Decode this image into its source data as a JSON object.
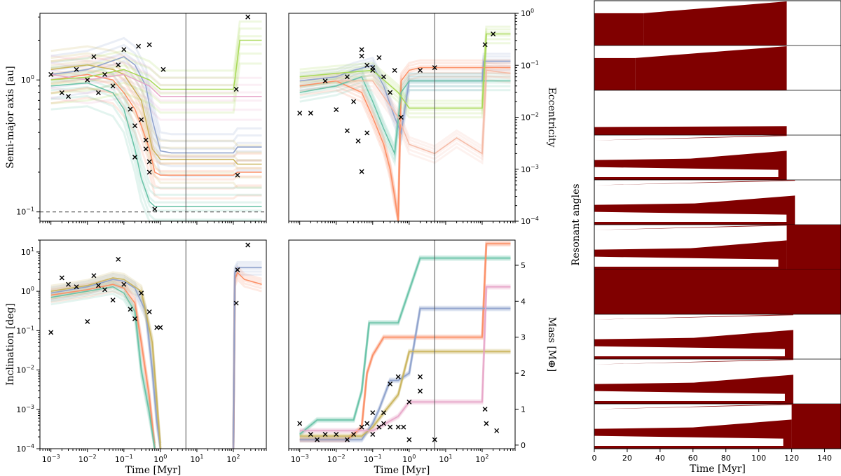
{
  "chart_data": [
    {
      "id": "semimajor",
      "type": "line",
      "xscale": "log",
      "yscale": "log",
      "xlim": [
        0.0005,
        800
      ],
      "ylim": [
        0.085,
        3.2
      ],
      "xlabel": "",
      "ylabel": "Semi-major axis [au]",
      "ytick_labels": [
        "10^0",
        "10^-1"
      ],
      "ytick_values": [
        1,
        0.1
      ],
      "vline_x": 5,
      "hline_y": 0.1,
      "series": [
        {
          "name": "blue",
          "color": "#8da0cb",
          "x": [
            0.001,
            0.01,
            0.05,
            0.1,
            0.2,
            0.4,
            0.6,
            1,
            2,
            5,
            100,
            130,
            600
          ],
          "y": [
            1.1,
            1.2,
            1.4,
            1.5,
            1.3,
            0.9,
            0.5,
            0.29,
            0.28,
            0.28,
            0.28,
            0.31,
            0.31
          ]
        },
        {
          "name": "orange",
          "color": "#fc8d62",
          "x": [
            0.001,
            0.01,
            0.05,
            0.1,
            0.2,
            0.3,
            0.5,
            0.7,
            1,
            5,
            100,
            130,
            600
          ],
          "y": [
            1.0,
            1.1,
            1.0,
            0.8,
            0.6,
            0.45,
            0.3,
            0.2,
            0.19,
            0.19,
            0.19,
            0.2,
            0.2
          ]
        },
        {
          "name": "green",
          "color": "#66c2a5",
          "x": [
            0.001,
            0.01,
            0.05,
            0.1,
            0.2,
            0.3,
            0.5,
            0.7,
            1,
            5,
            100,
            130,
            600
          ],
          "y": [
            0.9,
            0.95,
            0.8,
            0.6,
            0.3,
            0.18,
            0.12,
            0.11,
            0.11,
            0.11,
            0.11,
            0.11,
            0.11
          ]
        },
        {
          "name": "olive",
          "color": "#c9b35a",
          "x": [
            0.001,
            0.01,
            0.05,
            0.1,
            0.3,
            0.6,
            1,
            5,
            100,
            130,
            600
          ],
          "y": [
            1.2,
            1.3,
            1.2,
            1.1,
            0.7,
            0.3,
            0.25,
            0.25,
            0.25,
            0.23,
            0.23
          ]
        },
        {
          "name": "pink",
          "color": "#e7a5c9",
          "x": [
            0.001,
            0.01,
            0.1,
            0.5,
            1,
            5,
            100,
            130,
            600
          ],
          "y": [
            1.1,
            1.0,
            1.1,
            0.9,
            0.75,
            0.75,
            0.75,
            0.75,
            0.75
          ]
        },
        {
          "name": "lightgreen",
          "color": "#a6d854",
          "x": [
            0.001,
            0.01,
            0.1,
            0.5,
            1,
            5,
            100,
            110,
            150,
            600
          ],
          "y": [
            1.0,
            1.05,
            1.2,
            1.0,
            0.85,
            0.85,
            0.85,
            1.0,
            2.0,
            2.0
          ]
        }
      ],
      "markers": {
        "x": [
          0.001,
          0.002,
          0.003,
          0.005,
          0.01,
          0.015,
          0.02,
          0.03,
          0.05,
          0.07,
          0.1,
          0.15,
          0.2,
          0.25,
          0.3,
          0.4,
          0.5,
          0.7,
          1.2,
          0.5,
          0.5,
          0.2,
          0.4,
          120,
          130,
          250
        ],
        "y": [
          1.1,
          0.8,
          0.75,
          1.2,
          1.0,
          1.5,
          0.8,
          1.1,
          0.9,
          1.3,
          1.7,
          0.6,
          0.26,
          1.8,
          0.5,
          0.35,
          0.24,
          0.105,
          1.2,
          1.85,
          0.2,
          0.45,
          0.3,
          0.85,
          0.19,
          3.0
        ]
      }
    },
    {
      "id": "eccentricity",
      "type": "line",
      "xscale": "log",
      "yscale": "log",
      "xlim": [
        0.0005,
        800
      ],
      "ylim": [
        0.0001,
        1.0
      ],
      "xlabel": "",
      "ylabel": "Eccentricity",
      "ytick_labels": [
        "10^0",
        "10^-1",
        "10^-2",
        "10^-3",
        "10^-4"
      ],
      "ytick_values": [
        1,
        0.1,
        0.01,
        0.001,
        0.0001
      ],
      "vline_x": 5,
      "series": [
        {
          "name": "blue",
          "color": "#8da0cb",
          "x": [
            0.001,
            0.01,
            0.03,
            0.1,
            0.2,
            0.4,
            0.6,
            1,
            2,
            5,
            100,
            110,
            600
          ],
          "y": [
            0.05,
            0.06,
            0.08,
            0.1,
            0.04,
            0.01,
            0.005,
            0.05,
            0.05,
            0.05,
            0.05,
            0.12,
            0.12
          ]
        },
        {
          "name": "orange",
          "color": "#fc8d62",
          "x": [
            0.001,
            0.01,
            0.05,
            0.1,
            0.2,
            0.3,
            0.4,
            0.5,
            0.6,
            1,
            2,
            5,
            100,
            600
          ],
          "y": [
            0.04,
            0.05,
            0.03,
            0.01,
            0.003,
            0.001,
            0.0003,
            0.0001,
            0.05,
            0.08,
            0.09,
            0.09,
            0.09,
            0.09
          ]
        },
        {
          "name": "green",
          "color": "#66c2a5",
          "x": [
            0.001,
            0.01,
            0.05,
            0.1,
            0.2,
            0.4,
            0.6,
            1,
            2,
            5,
            100,
            600
          ],
          "y": [
            0.03,
            0.04,
            0.06,
            0.02,
            0.006,
            0.002,
            0.03,
            0.05,
            0.05,
            0.05,
            0.05,
            0.05
          ]
        },
        {
          "name": "lightgreen",
          "color": "#a6d854",
          "x": [
            0.001,
            0.01,
            0.1,
            0.5,
            1,
            5,
            50,
            100,
            130,
            600
          ],
          "y": [
            0.06,
            0.07,
            0.08,
            0.03,
            0.015,
            0.015,
            0.015,
            0.015,
            0.4,
            0.4
          ]
        },
        {
          "name": "salmon",
          "color": "#f4b9a4",
          "x": [
            0.01,
            0.1,
            0.5,
            1,
            5,
            20,
            100,
            130,
            600
          ],
          "y": [
            0.05,
            0.05,
            0.01,
            0.003,
            0.002,
            0.004,
            0.002,
            0.08,
            0.07
          ]
        }
      ],
      "markers": {
        "x": [
          0.001,
          0.002,
          0.005,
          0.01,
          0.02,
          0.03,
          0.05,
          0.05,
          0.07,
          0.1,
          0.15,
          0.2,
          0.3,
          0.4,
          0.6,
          2,
          5,
          120,
          200,
          0.04,
          0.05,
          0.07,
          0.1,
          0.02
        ],
        "y": [
          0.012,
          0.012,
          0.05,
          0.014,
          0.06,
          0.02,
          0.2,
          0.15,
          0.1,
          0.09,
          0.14,
          0.06,
          0.03,
          0.08,
          0.01,
          0.08,
          0.09,
          0.25,
          0.4,
          0.0035,
          0.0009,
          0.005,
          0.08,
          0.0055
        ]
      }
    },
    {
      "id": "inclination",
      "type": "line",
      "xscale": "log",
      "yscale": "log",
      "xlim": [
        0.0005,
        800
      ],
      "ylim": [
        0.0001,
        20
      ],
      "xlabel": "Time [Myr]",
      "ylabel": "Inclination [deg]",
      "xtick_labels": [
        "10^-3",
        "10^-2",
        "10^-1",
        "10^0",
        "10^1",
        "10^2"
      ],
      "xtick_values": [
        0.001,
        0.01,
        0.1,
        1,
        10,
        100
      ],
      "ytick_labels": [
        "10^1",
        "10^0",
        "10^-1",
        "10^-2",
        "10^-3",
        "10^-4"
      ],
      "ytick_values": [
        10,
        1,
        0.1,
        0.01,
        0.001,
        0.0001
      ],
      "vline_x": 5,
      "series": [
        {
          "name": "blue",
          "color": "#8da0cb",
          "x": [
            0.001,
            0.01,
            0.05,
            0.1,
            0.2,
            0.4,
            0.6,
            0.8,
            1
          ],
          "y": [
            0.9,
            1.3,
            2.0,
            1.8,
            1.2,
            0.3,
            0.01,
            0.0005,
            0.0001
          ]
        },
        {
          "name": "orange",
          "color": "#fc8d62",
          "x": [
            0.001,
            0.01,
            0.05,
            0.1,
            0.2,
            0.3,
            0.5,
            0.7
          ],
          "y": [
            0.8,
            1.1,
            1.5,
            1.2,
            0.5,
            0.05,
            0.002,
            0.0001
          ]
        },
        {
          "name": "green",
          "color": "#66c2a5",
          "x": [
            0.001,
            0.01,
            0.05,
            0.1,
            0.2,
            0.3,
            0.5,
            0.7
          ],
          "y": [
            0.7,
            1.0,
            1.3,
            0.9,
            0.3,
            0.01,
            0.0008,
            0.0001
          ]
        },
        {
          "name": "olive",
          "color": "#c9b35a",
          "x": [
            0.001,
            0.01,
            0.05,
            0.1,
            0.3,
            0.6,
            1
          ],
          "y": [
            1.0,
            1.4,
            2.2,
            2.0,
            1.0,
            0.05,
            0.0001
          ]
        },
        {
          "name": "late-orange",
          "color": "#fc8d62",
          "x": [
            100,
            110,
            130,
            200,
            600
          ],
          "y": [
            0.0001,
            2,
            3,
            2,
            1.5
          ]
        },
        {
          "name": "late-blue",
          "color": "#8da0cb",
          "x": [
            100,
            110,
            130,
            200,
            600
          ],
          "y": [
            0.0001,
            3,
            4,
            4,
            4
          ]
        }
      ],
      "markers": {
        "x": [
          0.001,
          0.002,
          0.003,
          0.005,
          0.01,
          0.015,
          0.02,
          0.03,
          0.05,
          0.07,
          0.1,
          0.15,
          0.2,
          0.3,
          0.5,
          0.8,
          1,
          120,
          130,
          250
        ],
        "y": [
          0.09,
          2.2,
          1.5,
          1.3,
          0.17,
          2.5,
          1.4,
          1.1,
          0.6,
          6.5,
          1.5,
          0.35,
          0.2,
          0.9,
          0.3,
          0.12,
          0.12,
          0.5,
          3.5,
          15
        ]
      }
    },
    {
      "id": "mass",
      "type": "line",
      "xscale": "log",
      "yscale": "linear",
      "xlim": [
        0.0005,
        800
      ],
      "ylim": [
        -0.1,
        5.7
      ],
      "xlabel": "Time [Myr]",
      "ylabel": "Mass [M⊕]",
      "xtick_labels": [
        "10^-3",
        "10^-2",
        "10^-1",
        "10^0",
        "10^1",
        "10^2"
      ],
      "xtick_values": [
        0.001,
        0.01,
        0.1,
        1,
        10,
        100
      ],
      "ytick_labels": [
        "0",
        "1",
        "2",
        "3",
        "4",
        "5"
      ],
      "ytick_values": [
        0,
        1,
        2,
        3,
        4,
        5
      ],
      "vline_x": 5,
      "series": [
        {
          "name": "green",
          "color": "#66c2a5",
          "x": [
            0.001,
            0.003,
            0.03,
            0.05,
            0.08,
            0.3,
            0.5,
            2,
            5,
            100,
            600
          ],
          "y": [
            0.3,
            0.7,
            0.7,
            1.5,
            3.4,
            3.4,
            3.4,
            5.2,
            5.2,
            5.2,
            5.2
          ]
        },
        {
          "name": "orange",
          "color": "#fc8d62",
          "x": [
            0.001,
            0.02,
            0.05,
            0.07,
            0.1,
            0.2,
            0.5,
            1,
            5,
            100,
            130,
            600
          ],
          "y": [
            0.15,
            0.15,
            0.5,
            2.0,
            2.5,
            3.0,
            3.0,
            3.0,
            3.0,
            3.0,
            5.6,
            5.6
          ]
        },
        {
          "name": "blue",
          "color": "#8da0cb",
          "x": [
            0.001,
            0.05,
            0.1,
            0.15,
            0.3,
            0.5,
            1,
            2,
            5,
            600
          ],
          "y": [
            0.15,
            0.15,
            0.6,
            1.0,
            1.8,
            1.8,
            2.0,
            3.8,
            3.8,
            3.8
          ]
        },
        {
          "name": "olive",
          "color": "#c9b35a",
          "x": [
            0.001,
            0.05,
            0.1,
            0.2,
            0.5,
            1,
            5,
            100,
            600
          ],
          "y": [
            0.25,
            0.25,
            0.5,
            0.9,
            1.4,
            2.6,
            2.6,
            2.6,
            2.6
          ]
        },
        {
          "name": "pink",
          "color": "#e7a5c9",
          "x": [
            0.001,
            0.1,
            0.5,
            1,
            5,
            100,
            130,
            600
          ],
          "y": [
            0.4,
            0.4,
            0.8,
            1.2,
            1.2,
            1.2,
            4.4,
            4.4
          ]
        }
      ],
      "markers": {
        "x": [
          0.001,
          0.002,
          0.003,
          0.005,
          0.01,
          0.02,
          0.03,
          0.05,
          0.07,
          0.1,
          0.15,
          0.2,
          0.3,
          0.5,
          0.7,
          1,
          2,
          5,
          120,
          130,
          250,
          0.3,
          0.5,
          1,
          2,
          0.1,
          0.2
        ],
        "y": [
          0.6,
          0.3,
          0.15,
          0.3,
          0.3,
          0.15,
          0.3,
          0.5,
          0.6,
          0.3,
          0.5,
          0.6,
          0.5,
          0.5,
          0.5,
          0.15,
          1.5,
          0.15,
          1.0,
          0.6,
          0.4,
          1.7,
          1.9,
          1.2,
          1.9,
          0.9,
          0.9
        ]
      }
    },
    {
      "id": "resonant",
      "type": "heatmap",
      "xscale": "linear",
      "xlim": [
        0,
        150
      ],
      "xlabel": "Time [Myr]",
      "ylabel": "Resonant angles",
      "xtick_labels": [
        "0",
        "20",
        "40",
        "60",
        "80",
        "100",
        "120",
        "140"
      ],
      "xtick_values": [
        0,
        20,
        40,
        60,
        80,
        100,
        120,
        140
      ],
      "fill_color": "#800000",
      "panels": [
        {
          "mode": "late",
          "lib_end": 30,
          "end": 117,
          "fill_after": false
        },
        {
          "mode": "late",
          "lib_end": 25,
          "end": 117,
          "fill_after": false
        },
        {
          "mode": "flat",
          "lib_end": 0,
          "end": 117,
          "fill_after": false
        },
        {
          "mode": "band",
          "lib_end": 0,
          "end": 117,
          "fill_after": false
        },
        {
          "mode": "band",
          "lib_end": 0,
          "end": 122,
          "fill_after": false
        },
        {
          "mode": "band",
          "lib_end": 0,
          "end": 117,
          "fill_after": true
        },
        {
          "mode": "full",
          "lib_end": 0,
          "end": 150,
          "fill_after": true
        },
        {
          "mode": "band",
          "lib_end": 0,
          "end": 121,
          "fill_after": false
        },
        {
          "mode": "band",
          "lib_end": 0,
          "end": 121,
          "fill_after": false
        },
        {
          "mode": "band",
          "lib_end": 0,
          "end": 120,
          "fill_after": true
        }
      ]
    }
  ]
}
